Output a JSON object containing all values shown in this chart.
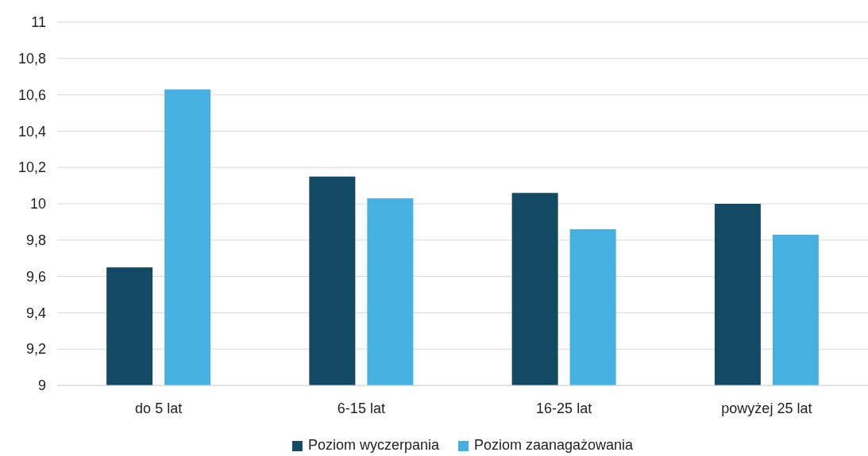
{
  "chart_data": {
    "type": "bar",
    "categories": [
      "do 5 lat",
      "6-15 lat",
      "16-25 lat",
      "powyżej 25 lat"
    ],
    "series": [
      {
        "name": "Poziom wyczerpania",
        "color": "#134a63",
        "values": [
          9.65,
          10.15,
          10.06,
          10.0
        ]
      },
      {
        "name": "Poziom zaanagażowania",
        "color": "#47b0e2",
        "values": [
          10.63,
          10.03,
          9.86,
          9.83
        ]
      }
    ],
    "ylim": [
      9,
      11
    ],
    "yticks": [
      9,
      {
        "value": 9.2,
        "label": "9,2"
      },
      {
        "value": 9.4,
        "label": "9,4"
      },
      {
        "value": 9.6,
        "label": "9,6"
      },
      {
        "value": 9.8,
        "label": "9,8"
      },
      10,
      {
        "value": 10.2,
        "label": "10,2"
      },
      {
        "value": 10.4,
        "label": "10,4"
      },
      {
        "value": 10.6,
        "label": "10,6"
      },
      {
        "value": 10.8,
        "label": "10,8"
      },
      11
    ],
    "grid": "y",
    "legend": "bottom"
  }
}
